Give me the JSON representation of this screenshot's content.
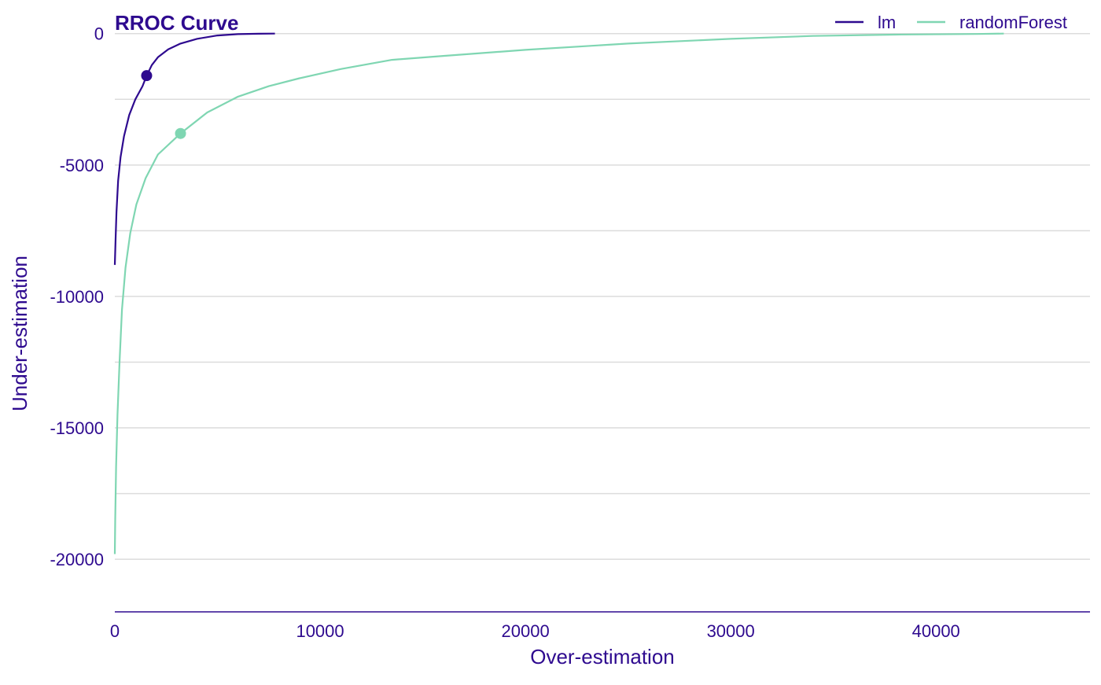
{
  "chart_data": {
    "type": "line",
    "title": "RROC Curve",
    "xlabel": "Over-estimation",
    "ylabel": "Under-estimation",
    "xlim": [
      0,
      47500
    ],
    "ylim": [
      -22000,
      500
    ],
    "x_ticks": [
      0,
      10000,
      20000,
      30000,
      40000
    ],
    "x_tick_labels": [
      "0",
      "10000",
      "20000",
      "30000",
      "40000"
    ],
    "y_ticks": [
      0,
      -5000,
      -10000,
      -15000,
      -20000
    ],
    "y_tick_labels": [
      "0",
      "-5000",
      "-10000",
      "-15000",
      "-20000"
    ],
    "y_gridlines": [
      0,
      -2500,
      -5000,
      -7500,
      -10000,
      -12500,
      -15000,
      -17500,
      -20000
    ],
    "grid": "horizontal",
    "legend_position": "top-right",
    "series": [
      {
        "name": "lm",
        "color": "#2e0a8f",
        "points": [
          [
            0,
            -8800
          ],
          [
            40,
            -7800
          ],
          [
            80,
            -6800
          ],
          [
            160,
            -5600
          ],
          [
            280,
            -4700
          ],
          [
            450,
            -3900
          ],
          [
            700,
            -3100
          ],
          [
            1000,
            -2500
          ],
          [
            1350,
            -2000
          ],
          [
            1550,
            -1600
          ],
          [
            1800,
            -1200
          ],
          [
            2100,
            -900
          ],
          [
            2600,
            -600
          ],
          [
            3200,
            -380
          ],
          [
            4000,
            -200
          ],
          [
            5000,
            -70
          ],
          [
            6000,
            -20
          ],
          [
            7000,
            -5
          ],
          [
            7800,
            0
          ]
        ],
        "marker": [
          1550,
          -1600
        ]
      },
      {
        "name": "randomForest",
        "color": "#7fd6b2",
        "points": [
          [
            0,
            -19800
          ],
          [
            20,
            -18500
          ],
          [
            60,
            -16500
          ],
          [
            130,
            -14500
          ],
          [
            230,
            -12500
          ],
          [
            350,
            -10500
          ],
          [
            520,
            -8900
          ],
          [
            750,
            -7600
          ],
          [
            1050,
            -6500
          ],
          [
            1500,
            -5500
          ],
          [
            2100,
            -4600
          ],
          [
            3200,
            -3800
          ],
          [
            4500,
            -3000
          ],
          [
            6000,
            -2400
          ],
          [
            7500,
            -2000
          ],
          [
            9000,
            -1700
          ],
          [
            11000,
            -1350
          ],
          [
            13500,
            -1000
          ],
          [
            16000,
            -850
          ],
          [
            20000,
            -620
          ],
          [
            25000,
            -380
          ],
          [
            30000,
            -200
          ],
          [
            34000,
            -90
          ],
          [
            38000,
            -40
          ],
          [
            42000,
            -15
          ],
          [
            43300,
            0
          ]
        ],
        "marker": [
          3200,
          -3800
        ]
      }
    ]
  }
}
